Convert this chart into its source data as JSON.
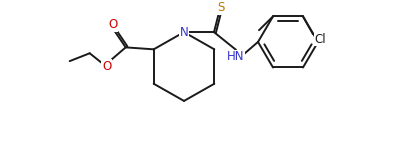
{
  "bg_color": "#ffffff",
  "line_color": "#1a1a1a",
  "atom_colors": {
    "O": "#cc0000",
    "N": "#3333cc",
    "S": "#bb7700",
    "Cl": "#1a1a1a",
    "C": "#1a1a1a"
  },
  "font_size": 8.5,
  "lw": 1.4
}
